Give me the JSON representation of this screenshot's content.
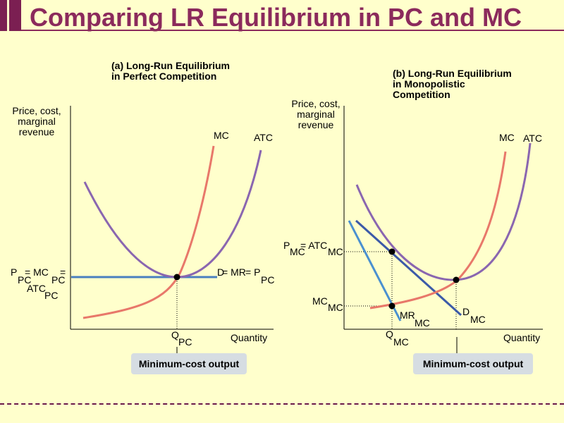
{
  "title": "Comparing LR Equilibrium in PC and MC",
  "colors": {
    "title": "#8b2a5c",
    "mc_curve": "#e8786a",
    "atc_curve": "#8a66b0",
    "demand_pc": "#4a7fc0",
    "demand_mc": "#3c5aa8",
    "mr_mc": "#4a90d0"
  },
  "panel_a": {
    "title_line1": "(a) Long-Run Equilibrium",
    "title_line2": "in Perfect Competition",
    "y_label_line1": "Price, cost,",
    "y_label_line2": "marginal",
    "y_label_line3": "revenue",
    "x_label": "Quantity",
    "mc_label": "MC",
    "atc_label": "ATC",
    "price_label": {
      "p": "P",
      "pc1": "PC",
      "eq1": " = MC",
      "pc2": "PC",
      "eq2": " =",
      "atc": "ATC",
      "pc3": "PC"
    },
    "demand_label": {
      "d": "D",
      "eq1": " = MR",
      "eq2": " = P",
      "pc": "PC"
    },
    "q_label": {
      "q": "Q",
      "pc": "PC"
    },
    "min_cost": "Minimum-cost output"
  },
  "panel_b": {
    "title_line1": "(b) Long-Run Equilibrium",
    "title_line2": "in Monopolistic",
    "title_line3": "Competition",
    "y_label_line1": "Price, cost,",
    "y_label_line2": "marginal",
    "y_label_line3": "revenue",
    "x_label": "Quantity",
    "mc_label": "MC",
    "atc_label": "ATC",
    "price_label": {
      "p": "P",
      "mc1": "MC",
      "eq": " = ATC",
      "mc2": "MC"
    },
    "cost_label": {
      "mc": "MC",
      "sub": "MC"
    },
    "mr_label": {
      "mr": "MR",
      "sub": "MC"
    },
    "demand_label": {
      "d": "D",
      "sub": "MC"
    },
    "q_label": {
      "q": "Q",
      "sub": "MC"
    },
    "min_cost": "Minimum-cost output"
  }
}
